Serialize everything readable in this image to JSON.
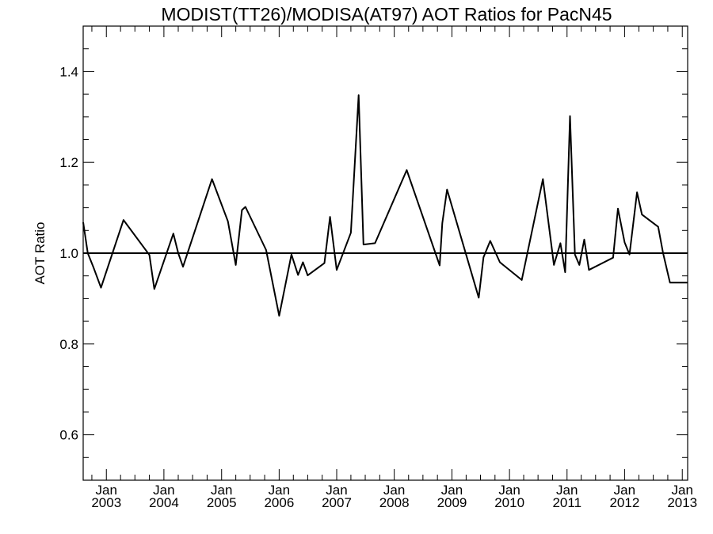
{
  "chart_data": {
    "type": "line",
    "title": "MODIST(TT26)/MODISA(AT97)  AOT Ratios for PacN45",
    "xlabel": "",
    "ylabel": "AOT Ratio",
    "ylim": [
      0.5,
      1.5
    ],
    "xlim": [
      "2002-08-07",
      "2013-02-04"
    ],
    "grid": false,
    "yticks": [
      {
        "value": 0.6,
        "label": "0.6"
      },
      {
        "value": 0.8,
        "label": "0.8"
      },
      {
        "value": 1.0,
        "label": "1.0"
      },
      {
        "value": 1.2,
        "label": "1.2"
      },
      {
        "value": 1.4,
        "label": "1.4"
      }
    ],
    "xticks": [
      {
        "date": "2003-01-01",
        "month": "Jan",
        "year": "2003"
      },
      {
        "date": "2004-01-01",
        "month": "Jan",
        "year": "2004"
      },
      {
        "date": "2005-01-01",
        "month": "Jan",
        "year": "2005"
      },
      {
        "date": "2006-01-01",
        "month": "Jan",
        "year": "2006"
      },
      {
        "date": "2007-01-01",
        "month": "Jan",
        "year": "2007"
      },
      {
        "date": "2008-01-01",
        "month": "Jan",
        "year": "2008"
      },
      {
        "date": "2009-01-01",
        "month": "Jan",
        "year": "2009"
      },
      {
        "date": "2010-01-01",
        "month": "Jan",
        "year": "2010"
      },
      {
        "date": "2011-01-01",
        "month": "Jan",
        "year": "2011"
      },
      {
        "date": "2012-01-01",
        "month": "Jan",
        "year": "2012"
      },
      {
        "date": "2013-01-01",
        "month": "Jan",
        "year": "2013"
      }
    ],
    "reference_line": {
      "y": 1.0
    },
    "series": [
      {
        "x": [
          "2002-08-07",
          "2002-09-05",
          "2002-10-10",
          "2002-11-28",
          "2003-04-20",
          "2003-10-01",
          "2003-11-01",
          "2004-03-01",
          "2004-04-01",
          "2004-05-01",
          "2004-11-01",
          "2005-02-10",
          "2005-04-01",
          "2005-05-10",
          "2005-06-01",
          "2005-10-10",
          "2006-01-01",
          "2006-03-20",
          "2006-05-01",
          "2006-06-01",
          "2006-07-01",
          "2006-10-15",
          "2006-11-20",
          "2007-01-01",
          "2007-04-01",
          "2007-05-20",
          "2007-06-20",
          "2007-09-01",
          "2008-03-20",
          "2008-10-15",
          "2008-11-01",
          "2008-12-01",
          "2009-06-20",
          "2009-07-20",
          "2009-09-01",
          "2009-11-01",
          "2010-03-20",
          "2010-08-01",
          "2010-10-10",
          "2010-11-20",
          "2010-12-20",
          "2011-01-20",
          "2011-02-20",
          "2011-03-20",
          "2011-04-20",
          "2011-05-20",
          "2011-10-20",
          "2011-11-20",
          "2012-01-01",
          "2012-02-01",
          "2012-03-20",
          "2012-04-20",
          "2012-08-01",
          "2012-09-01",
          "2012-10-15",
          "2013-02-04"
        ],
        "y": [
          1.068,
          1.0,
          0.97,
          0.924,
          1.073,
          0.996,
          0.921,
          1.043,
          1.0,
          0.97,
          1.163,
          1.07,
          0.974,
          1.095,
          1.102,
          1.007,
          0.862,
          0.997,
          0.952,
          0.98,
          0.951,
          0.978,
          1.08,
          0.963,
          1.045,
          1.348,
          1.019,
          1.022,
          1.183,
          0.973,
          1.066,
          1.14,
          0.902,
          0.991,
          1.027,
          0.98,
          0.941,
          1.163,
          0.974,
          1.022,
          0.958,
          1.302,
          0.997,
          0.974,
          1.03,
          0.963,
          0.99,
          1.098,
          1.024,
          0.997,
          1.134,
          1.085,
          1.058,
          1.0,
          0.935,
          0.935
        ]
      }
    ]
  }
}
